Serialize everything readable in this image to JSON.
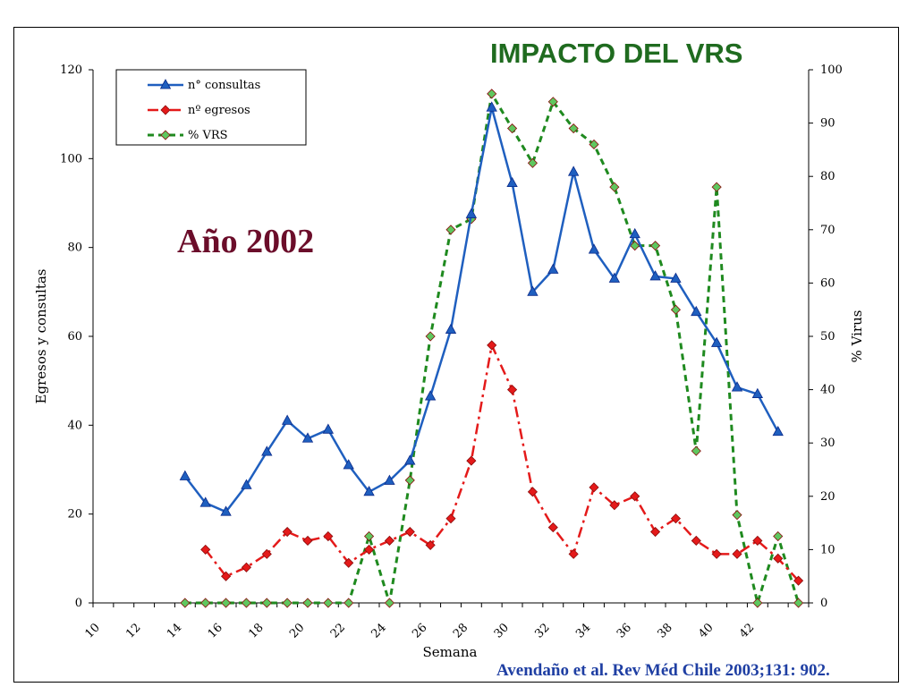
{
  "header": {
    "title": "IMPACTO DEL VRS"
  },
  "annotation": {
    "year": "Año 2002"
  },
  "footer": {
    "citation": "Avendaño et al.  Rev Méd Chile 2003;131: 902."
  },
  "colors": {
    "consultas": "#1f5fbf",
    "egresos": "#e41a1a",
    "vrs": "#1f8a1f",
    "title": "#1f6b1f",
    "year": "#6b0d2a",
    "citation": "#1f3fa3"
  },
  "chart_data": {
    "type": "line",
    "xlabel": "Semana",
    "ylabel": "Egresos y consultas",
    "y2label": "% Virus",
    "xlim": [
      10,
      45
    ],
    "ylim": [
      0,
      120
    ],
    "y2lim": [
      0,
      100
    ],
    "xticks": [
      "10",
      "12",
      "14",
      "16",
      "18",
      "20",
      "22",
      "24",
      "26",
      "28",
      "30",
      "32",
      "34",
      "36",
      "38",
      "40",
      "42"
    ],
    "yticks": [
      "0",
      "20",
      "40",
      "60",
      "80",
      "100",
      "120"
    ],
    "y2ticks": [
      "0",
      "10",
      "20",
      "30",
      "40",
      "50",
      "60",
      "70",
      "80",
      "90",
      "100"
    ],
    "legend_position": "top-left",
    "grid": false,
    "series": [
      {
        "name": "n° consultas",
        "axis": "left",
        "marker": "triangle",
        "dash": "solid",
        "x": [
          14.5,
          15.5,
          16.5,
          17.5,
          18.5,
          19.5,
          20.5,
          21.5,
          22.5,
          23.5,
          24.5,
          25.5,
          26.5,
          27.5,
          28.5,
          29.5,
          30.5,
          31.5,
          32.5,
          33.5,
          34.5,
          35.5,
          36.5,
          37.5,
          38.5,
          39.5,
          40.5,
          41.5,
          42.5,
          43.5
        ],
        "values": [
          28.5,
          22.5,
          20.5,
          26.5,
          34,
          41,
          37,
          39,
          31,
          25,
          27.5,
          32,
          46.5,
          61.5,
          87.5,
          111.5,
          94.5,
          70,
          75,
          97,
          79.5,
          73,
          83,
          73.5,
          73,
          65.5,
          58.5,
          48.5,
          47,
          38.5
        ]
      },
      {
        "name": "nº egresos",
        "axis": "left",
        "marker": "diamond",
        "dash": "dashdot",
        "x": [
          15.5,
          16.5,
          17.5,
          18.5,
          19.5,
          20.5,
          21.5,
          22.5,
          23.5,
          24.5,
          25.5,
          26.5,
          27.5,
          28.5,
          29.5,
          30.5,
          31.5,
          32.5,
          33.5,
          34.5,
          35.5,
          36.5,
          37.5,
          38.5,
          39.5,
          40.5,
          41.5,
          42.5,
          43.5,
          44.5
        ],
        "values": [
          12,
          6,
          8,
          11,
          16,
          14,
          15,
          9,
          12,
          14,
          16,
          13,
          19,
          32,
          58,
          48,
          25,
          17,
          11,
          26,
          22,
          24,
          16,
          19,
          14,
          11,
          11,
          14,
          10,
          5
        ]
      },
      {
        "name": "% VRS",
        "axis": "right",
        "marker": "diamond",
        "dash": "dashed",
        "x": [
          14.5,
          15.5,
          16.5,
          17.5,
          18.5,
          19.5,
          20.5,
          21.5,
          22.5,
          23.5,
          24.5,
          25.5,
          26.5,
          27.5,
          28.5,
          29.5,
          30.5,
          31.5,
          32.5,
          33.5,
          34.5,
          35.5,
          36.5,
          37.5,
          38.5,
          39.5,
          40.5,
          41.5,
          42.5,
          43.5,
          44.5
        ],
        "values": [
          0,
          0,
          0,
          0,
          0,
          0,
          0,
          0,
          0,
          12.5,
          0,
          23,
          50,
          70,
          72,
          95.5,
          89,
          82.5,
          94,
          89,
          86,
          78,
          67,
          67,
          55,
          28.5,
          78,
          16.5,
          0,
          12.5,
          0
        ]
      }
    ]
  }
}
